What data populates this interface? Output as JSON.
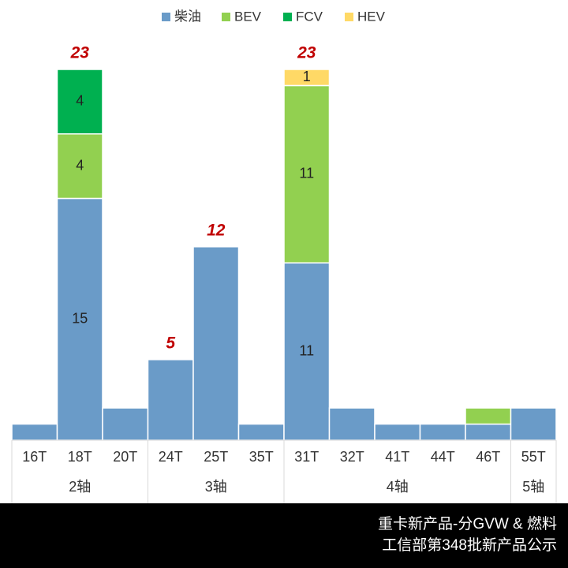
{
  "chart_data": {
    "type": "stacked-bar",
    "categories": [
      "16T",
      "18T",
      "20T",
      "24T",
      "25T",
      "35T",
      "31T",
      "32T",
      "41T",
      "44T",
      "46T",
      "55T"
    ],
    "category_groups": [
      "2轴",
      "2轴",
      "2轴",
      "3轴",
      "3轴",
      "3轴",
      "4轴",
      "4轴",
      "4轴",
      "4轴",
      "4轴",
      "5轴"
    ],
    "series": [
      {
        "name": "柴油",
        "color": "#6a9bc8",
        "values": [
          1,
          15,
          2,
          5,
          12,
          1,
          11,
          2,
          1,
          1,
          1,
          2
        ],
        "value_labels": [
          null,
          "15",
          null,
          null,
          null,
          null,
          "11",
          null,
          null,
          null,
          null,
          null
        ]
      },
      {
        "name": "BEV",
        "color": "#92d050",
        "values": [
          0,
          4,
          0,
          0,
          0,
          0,
          11,
          0,
          0,
          0,
          1,
          0
        ],
        "value_labels": [
          null,
          "4",
          null,
          null,
          null,
          null,
          "11",
          null,
          null,
          null,
          null,
          null
        ]
      },
      {
        "name": "FCV",
        "color": "#00b050",
        "values": [
          0,
          4,
          0,
          0,
          0,
          0,
          0,
          0,
          0,
          0,
          0,
          0
        ],
        "value_labels": [
          null,
          "4",
          null,
          null,
          null,
          null,
          null,
          null,
          null,
          null,
          null,
          null
        ]
      },
      {
        "name": "HEV",
        "color": "#ffd966",
        "values": [
          0,
          0,
          0,
          0,
          0,
          0,
          1,
          0,
          0,
          0,
          0,
          0
        ],
        "value_labels": [
          null,
          null,
          null,
          null,
          null,
          null,
          "1",
          null,
          null,
          null,
          null,
          null
        ]
      }
    ],
    "totals": [
      null,
      23,
      null,
      5,
      12,
      null,
      23,
      null,
      null,
      null,
      null,
      null
    ],
    "ylim": [
      0,
      23
    ],
    "footer": [
      "重卡新产品-分GVW & 燃料",
      "工信部第348批新产品公示"
    ]
  }
}
